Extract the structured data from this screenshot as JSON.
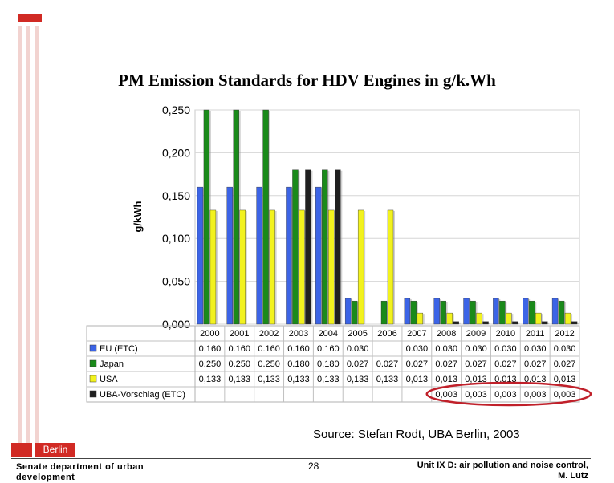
{
  "slide": {
    "title": "PM Emission Standards for HDV Engines in g/k.Wh",
    "source": "Source: Stefan Rodt, UBA Berlin, 2003",
    "footer_left": "Senate department of urban development",
    "page_number": "28",
    "footer_right_line1": "Unit IX D: air pollution and noise control,",
    "footer_right_line2": "M. Lutz",
    "logo_text": "Berlin"
  },
  "colors": {
    "accent_red": "#d12a24",
    "eu": "#3c64e6",
    "japan": "#1a8a1a",
    "usa": "#f2f21e",
    "uba": "#202020",
    "highlight": "#c0202a"
  },
  "chart_data": {
    "type": "bar",
    "title": "PM Emission Standards for HDV Engines in g/k.Wh",
    "ylabel": "g/kWh",
    "xlabel": "",
    "ylim": [
      0,
      0.25
    ],
    "yticks": [
      "0,250",
      "0,200",
      "0,150",
      "0,100",
      "0,050",
      "0,000"
    ],
    "grid": true,
    "categories": [
      "2000",
      "2001",
      "2002",
      "2003",
      "2004",
      "2005",
      "2006",
      "2007",
      "2008",
      "2009",
      "2010",
      "2011",
      "2012"
    ],
    "series": [
      {
        "name": "EU (ETC)",
        "color": "#3c64e6",
        "values": [
          0.16,
          0.16,
          0.16,
          0.16,
          0.16,
          0.03,
          null,
          0.03,
          0.03,
          0.03,
          0.03,
          0.03,
          0.03
        ],
        "labels": [
          "0.160",
          "0.160",
          "0.160",
          "0.160",
          "0.160",
          "0.030",
          "",
          "0.030",
          "0.030",
          "0.030",
          "0.030",
          "0.030",
          "0.030"
        ]
      },
      {
        "name": "Japan",
        "color": "#1a8a1a",
        "values": [
          0.25,
          0.25,
          0.25,
          0.18,
          0.18,
          0.027,
          0.027,
          0.027,
          0.027,
          0.027,
          0.027,
          0.027,
          0.027
        ],
        "labels": [
          "0.250",
          "0.250",
          "0.250",
          "0.180",
          "0.180",
          "0.027",
          "0.027",
          "0.027",
          "0.027",
          "0.027",
          "0.027",
          "0.027",
          "0.027"
        ]
      },
      {
        "name": "USA",
        "color": "#f2f21e",
        "values": [
          0.133,
          0.133,
          0.133,
          0.133,
          0.133,
          0.133,
          0.133,
          0.013,
          0.013,
          0.013,
          0.013,
          0.013,
          0.013
        ],
        "labels": [
          "0,133",
          "0,133",
          "0,133",
          "0,133",
          "0,133",
          "0,133",
          "0,133",
          "0,013",
          "0,013",
          "0,013",
          "0,013",
          "0,013",
          "0,013"
        ]
      },
      {
        "name": "UBA-Vorschlag (ETC)",
        "color": "#202020",
        "values": [
          null,
          null,
          null,
          0.18,
          0.18,
          null,
          null,
          null,
          0.003,
          0.003,
          0.003,
          0.003,
          0.003
        ],
        "labels": [
          "",
          "",
          "",
          "",
          "",
          "",
          "",
          "",
          "0,003",
          "0,003",
          "0,003",
          "0,003",
          "0,003"
        ]
      }
    ]
  }
}
